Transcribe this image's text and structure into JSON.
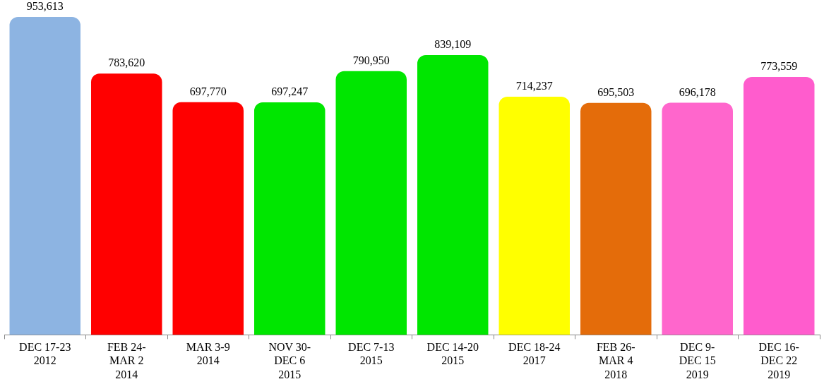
{
  "chart_data": {
    "type": "bar",
    "categories": [
      "DEC 17-23\n2012",
      "FEB 24-\nMAR 2\n2014",
      "MAR 3-9\n2014",
      "NOV 30-\nDEC 6\n2015",
      "DEC 7-13\n2015",
      "DEC 14-20\n2015",
      "DEC 18-24\n2017",
      "FEB 26-\nMAR 4\n2018",
      "DEC 9-\nDEC 15\n2019",
      "DEC 16-\nDEC 22\n2019"
    ],
    "values": [
      953613,
      783620,
      697770,
      697247,
      790950,
      839109,
      714237,
      695503,
      696178,
      773559
    ],
    "colors": [
      "#8db4e2",
      "#ff0000",
      "#ff0000",
      "#00e600",
      "#00e600",
      "#00e600",
      "#ffff00",
      "#e46c0a",
      "#ff66cc",
      "#ff5ccd"
    ],
    "value_labels": [
      "953,613",
      "783,620",
      "697,770",
      "697,247",
      "790,950",
      "839,109",
      "714,237",
      "695,503",
      "696,178",
      "773,559"
    ],
    "tick_labels": "x"
  }
}
